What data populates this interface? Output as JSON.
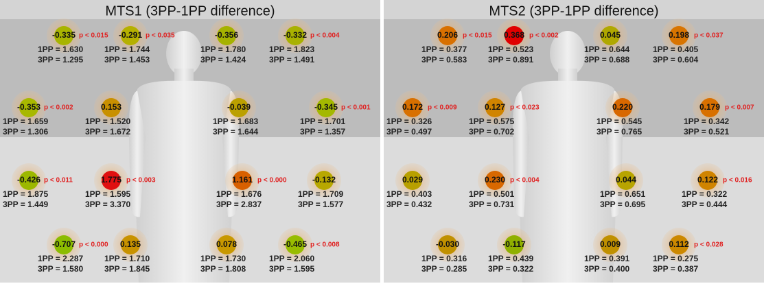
{
  "panels": [
    {
      "title": "MTS1 (3PP-1PP difference)",
      "points": [
        {
          "diff": "-0.335",
          "p": "p < 0.015",
          "pp1": "1PP = 1.630",
          "pp3": "3PP = 1.295",
          "color": "#a8b400"
        },
        {
          "diff": "-0.291",
          "p": "p < 0.035",
          "pp1": "1PP = 1.744",
          "pp3": "3PP = 1.453",
          "color": "#b5b000"
        },
        {
          "diff": "-0.356",
          "p": null,
          "pp1": "1PP = 1.780",
          "pp3": "3PP = 1.424",
          "color": "#a6b200"
        },
        {
          "diff": "-0.332",
          "p": "p < 0.004",
          "pp1": "1PP = 1.823",
          "pp3": "3PP = 1.491",
          "color": "#a9b100"
        },
        {
          "diff": "-0.353",
          "p": "p < 0.002",
          "pp1": "1PP = 1.659",
          "pp3": "3PP = 1.306",
          "color": "#a8b800"
        },
        {
          "diff": "0.153",
          "p": null,
          "pp1": "1PP = 1.520",
          "pp3": "3PP = 1.672",
          "color": "#c89000"
        },
        {
          "diff": "-0.039",
          "p": null,
          "pp1": "1PP = 1.683",
          "pp3": "3PP = 1.644",
          "color": "#bba000"
        },
        {
          "diff": "-0.345",
          "p": "p < 0.001",
          "pp1": "1PP = 1.701",
          "pp3": "3PP = 1.357",
          "color": "#a4b800"
        },
        {
          "diff": "-0.426",
          "p": "p < 0.011",
          "pp1": "1PP = 1.875",
          "pp3": "3PP = 1.449",
          "color": "#9cb800"
        },
        {
          "diff": "1.775",
          "p": "p < 0.003",
          "pp1": "1PP = 1.595",
          "pp3": "3PP = 3.370",
          "color": "#e01010"
        },
        {
          "diff": "1.161",
          "p": "p < 0.000",
          "pp1": "1PP = 1.676",
          "pp3": "3PP = 2.837",
          "color": "#d86000"
        },
        {
          "diff": "-0.132",
          "p": null,
          "pp1": "1PP = 1.709",
          "pp3": "3PP = 1.577",
          "color": "#b8a800"
        },
        {
          "diff": "-0.707",
          "p": "p < 0.000",
          "pp1": "1PP = 2.287",
          "pp3": "3PP = 1.580",
          "color": "#8cbc00"
        },
        {
          "diff": "0.135",
          "p": null,
          "pp1": "1PP = 1.710",
          "pp3": "3PP = 1.845",
          "color": "#c89200"
        },
        {
          "diff": "0.078",
          "p": null,
          "pp1": "1PP = 1.730",
          "pp3": "3PP = 1.808",
          "color": "#c89800"
        },
        {
          "diff": "-0.465",
          "p": "p < 0.008",
          "pp1": "1PP = 2.060",
          "pp3": "3PP = 1.595",
          "color": "#98bc00"
        }
      ]
    },
    {
      "title": "MTS2 (3PP-1PP difference)",
      "points": [
        {
          "diff": "0.206",
          "p": "p < 0.015",
          "pp1": "1PP = 0.377",
          "pp3": "3PP = 0.583",
          "color": "#d87000"
        },
        {
          "diff": "0.368",
          "p": "p < 0.002",
          "pp1": "1PP = 0.523",
          "pp3": "3PP = 0.891",
          "color": "#e00000"
        },
        {
          "diff": "0.045",
          "p": null,
          "pp1": "1PP = 0.644",
          "pp3": "3PP = 0.688",
          "color": "#b0a800"
        },
        {
          "diff": "0.198",
          "p": "p < 0.037",
          "pp1": "1PP = 0.405",
          "pp3": "3PP = 0.604",
          "color": "#d87400"
        },
        {
          "diff": "0.172",
          "p": "p < 0.009",
          "pp1": "1PP = 0.326",
          "pp3": "3PP = 0.497",
          "color": "#d87000"
        },
        {
          "diff": "0.127",
          "p": "p < 0.023",
          "pp1": "1PP = 0.575",
          "pp3": "3PP = 0.702",
          "color": "#d08400"
        },
        {
          "diff": "0.220",
          "p": null,
          "pp1": "1PP = 0.545",
          "pp3": "3PP = 0.765",
          "color": "#d86800"
        },
        {
          "diff": "0.179",
          "p": "p < 0.007",
          "pp1": "1PP = 0.342",
          "pp3": "3PP = 0.521",
          "color": "#d87000"
        },
        {
          "diff": "0.029",
          "p": null,
          "pp1": "1PP = 0.403",
          "pp3": "3PP = 0.432",
          "color": "#b8a000"
        },
        {
          "diff": "0.230",
          "p": "p < 0.004",
          "pp1": "1PP = 0.501",
          "pp3": "3PP = 0.731",
          "color": "#d86800"
        },
        {
          "diff": "0.044",
          "p": null,
          "pp1": "1PP = 0.651",
          "pp3": "3PP = 0.695",
          "color": "#b8a400"
        },
        {
          "diff": "0.122",
          "p": "p < 0.016",
          "pp1": "1PP = 0.322",
          "pp3": "3PP = 0.444",
          "color": "#d08400"
        },
        {
          "diff": "-0.030",
          "p": null,
          "pp1": "1PP = 0.316",
          "pp3": "3PP = 0.285",
          "color": "#c09000"
        },
        {
          "diff": "-0.117",
          "p": null,
          "pp1": "1PP = 0.439",
          "pp3": "3PP = 0.322",
          "color": "#90b000"
        },
        {
          "diff": "0.009",
          "p": null,
          "pp1": "1PP = 0.391",
          "pp3": "3PP = 0.400",
          "color": "#c09000"
        },
        {
          "diff": "0.112",
          "p": "p < 0.028",
          "pp1": "1PP = 0.275",
          "pp3": "3PP = 0.387",
          "color": "#cc8800"
        }
      ]
    }
  ]
}
